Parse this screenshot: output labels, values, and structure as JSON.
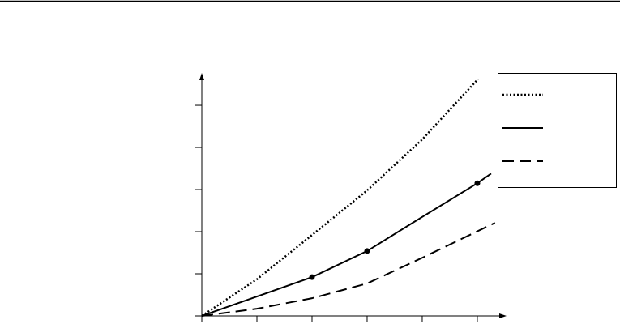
{
  "chart_data": {
    "type": "line",
    "xlim": [
      0,
      5.53
    ],
    "ylim": [
      0,
      5.77
    ],
    "xticks": [
      0,
      1,
      2,
      3,
      4,
      5
    ],
    "yticks": [
      0,
      1,
      2,
      3,
      4,
      5
    ],
    "legend": "right",
    "series": [
      {
        "color": "#000000",
        "dash": "dotted",
        "x": [
          0,
          1,
          2,
          3,
          4,
          5.01
        ],
        "values": [
          0,
          0.87,
          1.92,
          2.98,
          4.19,
          5.62
        ]
      },
      {
        "color": "#000000",
        "dash": "solid",
        "x": [
          0,
          1,
          2,
          3,
          4,
          5,
          5.25
        ],
        "values": [
          0,
          0.46,
          0.92,
          1.54,
          2.35,
          3.15,
          3.38
        ]
      },
      {
        "color": "#000000",
        "dash": "dashed",
        "x": [
          0,
          1,
          2,
          3,
          4,
          5.32
        ],
        "values": [
          0,
          0.17,
          0.42,
          0.77,
          1.38,
          2.21
        ]
      }
    ],
    "markers": {
      "color": "#000000",
      "x": [
        2,
        3,
        5
      ],
      "values": [
        0.92,
        1.54,
        3.15
      ]
    }
  }
}
